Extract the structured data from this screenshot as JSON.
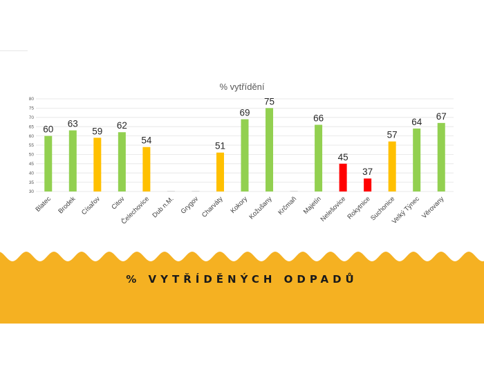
{
  "chart_data": {
    "type": "bar",
    "title": "% vytřídění",
    "categories": [
      "Blatec",
      "Brodek",
      "Císařov",
      "Citov",
      "Čelechovice",
      "Dub n.M.",
      "Grygov",
      "Charváty",
      "Kokory",
      "Kožušany",
      "Krčmaň",
      "Majetín",
      "Nelešovice",
      "Rokytnice",
      "Suchonice",
      "Velký Týnec",
      "Věrovany"
    ],
    "values": [
      60,
      63,
      59,
      62,
      54,
      30,
      30,
      51,
      69,
      75,
      30,
      66,
      45,
      37,
      57,
      64,
      67
    ],
    "data_labels": [
      "60",
      "63",
      "59",
      "62",
      "54",
      "",
      "",
      "51",
      "69",
      "75",
      "",
      "66",
      "45",
      "37",
      "57",
      "64",
      "67"
    ],
    "bar_colors": [
      "#92d050",
      "#92d050",
      "#ffc000",
      "#92d050",
      "#ffc000",
      "#d9d9d9",
      "#d9d9d9",
      "#ffc000",
      "#92d050",
      "#92d050",
      "#d9d9d9",
      "#92d050",
      "#ff0000",
      "#ff0000",
      "#ffc000",
      "#92d050",
      "#92d050"
    ],
    "yticks": [
      "30",
      "35",
      "40",
      "45",
      "50",
      "55",
      "60",
      "65",
      "70",
      "75",
      "80"
    ],
    "ylim": [
      30,
      80
    ],
    "grid": true,
    "xlabel": "",
    "ylabel": ""
  },
  "banner": {
    "title": "% VYTŘÍDĚNÝCH ODPADŮ",
    "color": "#f5b122"
  }
}
